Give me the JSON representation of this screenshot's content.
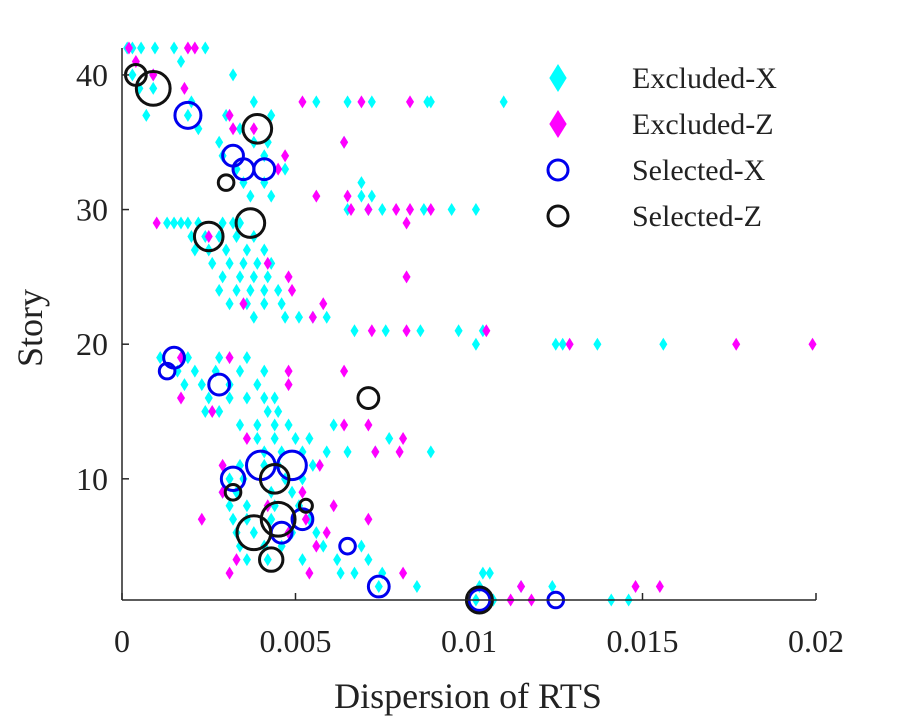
{
  "chart_data": {
    "type": "scatter",
    "xlabel": "Dispersion of RTS",
    "ylabel": "Story",
    "xlim": [
      0,
      0.02
    ],
    "ylim": [
      1,
      42
    ],
    "xticks": [
      0,
      0.005,
      0.01,
      0.015,
      0.02
    ],
    "xtick_labels": [
      "0",
      "0.005",
      "0.01",
      "0.015",
      "0.02"
    ],
    "yticks": [
      10,
      20,
      30,
      40
    ],
    "ytick_labels": [
      "10",
      "20",
      "30",
      "40"
    ],
    "grid": false,
    "legend_position": "top-right",
    "series": [
      {
        "name": "Excluded-X",
        "marker": "diamond",
        "filled": true,
        "color": "#00FFFF",
        "points": [
          [
            0.00015,
            42
          ],
          [
            0.0003,
            42
          ],
          [
            0.00055,
            42
          ],
          [
            0.00095,
            42
          ],
          [
            0.0015,
            42
          ],
          [
            0.0024,
            42
          ],
          [
            0.0003,
            40
          ],
          [
            0.0009,
            40
          ],
          [
            0.0017,
            41
          ],
          [
            0.0032,
            40
          ],
          [
            0.0005,
            39
          ],
          [
            0.0009,
            39
          ],
          [
            0.002,
            38
          ],
          [
            0.0038,
            38
          ],
          [
            0.0056,
            38
          ],
          [
            0.0065,
            38
          ],
          [
            0.0072,
            38
          ],
          [
            0.0088,
            38
          ],
          [
            0.0089,
            38
          ],
          [
            0.011,
            38
          ],
          [
            0.0007,
            37
          ],
          [
            0.0019,
            37
          ],
          [
            0.003,
            37
          ],
          [
            0.0043,
            37
          ],
          [
            0.0022,
            36
          ],
          [
            0.0034,
            36
          ],
          [
            0.0038,
            35
          ],
          [
            0.0042,
            35
          ],
          [
            0.0028,
            35
          ],
          [
            0.0064,
            35
          ],
          [
            0.0029,
            34
          ],
          [
            0.0041,
            34
          ],
          [
            0.0033,
            33
          ],
          [
            0.0047,
            33
          ],
          [
            0.0035,
            32
          ],
          [
            0.0041,
            32
          ],
          [
            0.0069,
            32
          ],
          [
            0.0037,
            31
          ],
          [
            0.0043,
            31
          ],
          [
            0.0069,
            31
          ],
          [
            0.0072,
            31
          ],
          [
            0.0075,
            30
          ],
          [
            0.0087,
            30
          ],
          [
            0.0095,
            30
          ],
          [
            0.0102,
            30
          ],
          [
            0.0065,
            30
          ],
          [
            0.0071,
            30
          ],
          [
            0.0013,
            29
          ],
          [
            0.0015,
            29
          ],
          [
            0.0017,
            29
          ],
          [
            0.0019,
            29
          ],
          [
            0.0022,
            29
          ],
          [
            0.0029,
            29
          ],
          [
            0.0032,
            29
          ],
          [
            0.0034,
            29
          ],
          [
            0.002,
            28
          ],
          [
            0.0024,
            28
          ],
          [
            0.0028,
            28
          ],
          [
            0.0033,
            28
          ],
          [
            0.0038,
            28
          ],
          [
            0.0021,
            27
          ],
          [
            0.0025,
            27
          ],
          [
            0.003,
            27
          ],
          [
            0.0036,
            27
          ],
          [
            0.0041,
            27
          ],
          [
            0.0026,
            26
          ],
          [
            0.0031,
            26
          ],
          [
            0.0035,
            26
          ],
          [
            0.0039,
            26
          ],
          [
            0.0043,
            26
          ],
          [
            0.0029,
            25
          ],
          [
            0.0034,
            25
          ],
          [
            0.0038,
            25
          ],
          [
            0.0042,
            25
          ],
          [
            0.0028,
            24
          ],
          [
            0.0033,
            24
          ],
          [
            0.0037,
            24
          ],
          [
            0.0041,
            24
          ],
          [
            0.0045,
            24
          ],
          [
            0.0031,
            23
          ],
          [
            0.0036,
            23
          ],
          [
            0.0041,
            23
          ],
          [
            0.0046,
            23
          ],
          [
            0.0038,
            22
          ],
          [
            0.0047,
            22
          ],
          [
            0.0051,
            22
          ],
          [
            0.0055,
            22
          ],
          [
            0.0059,
            22
          ],
          [
            0.0067,
            21
          ],
          [
            0.0076,
            21
          ],
          [
            0.0086,
            21
          ],
          [
            0.0097,
            21
          ],
          [
            0.0104,
            21
          ],
          [
            0.0102,
            20
          ],
          [
            0.0125,
            20
          ],
          [
            0.0127,
            20
          ],
          [
            0.0137,
            20
          ],
          [
            0.0156,
            20
          ],
          [
            0.0011,
            19
          ],
          [
            0.0019,
            19
          ],
          [
            0.0028,
            19
          ],
          [
            0.0036,
            19
          ],
          [
            0.0016,
            18
          ],
          [
            0.0021,
            18
          ],
          [
            0.0027,
            18
          ],
          [
            0.0034,
            18
          ],
          [
            0.0041,
            18
          ],
          [
            0.0018,
            17
          ],
          [
            0.0023,
            17
          ],
          [
            0.0031,
            17
          ],
          [
            0.0039,
            17
          ],
          [
            0.0025,
            16
          ],
          [
            0.0031,
            16
          ],
          [
            0.0036,
            16
          ],
          [
            0.0041,
            16
          ],
          [
            0.0044,
            16
          ],
          [
            0.0024,
            15
          ],
          [
            0.0028,
            15
          ],
          [
            0.0042,
            15
          ],
          [
            0.0045,
            15
          ],
          [
            0.0034,
            14
          ],
          [
            0.0039,
            14
          ],
          [
            0.0044,
            14
          ],
          [
            0.0048,
            14
          ],
          [
            0.0061,
            14
          ],
          [
            0.0039,
            13
          ],
          [
            0.0044,
            13
          ],
          [
            0.005,
            13
          ],
          [
            0.0054,
            13
          ],
          [
            0.0077,
            13
          ],
          [
            0.0041,
            12
          ],
          [
            0.0046,
            12
          ],
          [
            0.0052,
            12
          ],
          [
            0.0059,
            12
          ],
          [
            0.0065,
            12
          ],
          [
            0.0073,
            12
          ],
          [
            0.0089,
            12
          ],
          [
            0.0034,
            11
          ],
          [
            0.0041,
            11
          ],
          [
            0.0045,
            11
          ],
          [
            0.0055,
            11
          ],
          [
            0.0031,
            10
          ],
          [
            0.0035,
            10
          ],
          [
            0.0047,
            10
          ],
          [
            0.0052,
            10
          ],
          [
            0.0029,
            9
          ],
          [
            0.0033,
            9
          ],
          [
            0.0043,
            9
          ],
          [
            0.0049,
            9
          ],
          [
            0.0031,
            8
          ],
          [
            0.0036,
            8
          ],
          [
            0.0044,
            8
          ],
          [
            0.0051,
            8
          ],
          [
            0.0032,
            7
          ],
          [
            0.0036,
            7
          ],
          [
            0.0043,
            7
          ],
          [
            0.0054,
            7
          ],
          [
            0.0033,
            6
          ],
          [
            0.0038,
            6
          ],
          [
            0.0049,
            6
          ],
          [
            0.0056,
            6
          ],
          [
            0.0034,
            5
          ],
          [
            0.0041,
            5
          ],
          [
            0.0046,
            5
          ],
          [
            0.0058,
            5
          ],
          [
            0.0069,
            5
          ],
          [
            0.0036,
            4
          ],
          [
            0.0042,
            4
          ],
          [
            0.0052,
            4
          ],
          [
            0.0062,
            4
          ],
          [
            0.0071,
            4
          ],
          [
            0.0063,
            3
          ],
          [
            0.0067,
            3
          ],
          [
            0.0075,
            3
          ],
          [
            0.0104,
            3
          ],
          [
            0.0106,
            3
          ],
          [
            0.0074,
            2
          ],
          [
            0.0085,
            2
          ],
          [
            0.0103,
            2
          ],
          [
            0.0115,
            2
          ],
          [
            0.0124,
            2
          ],
          [
            0.0102,
            1
          ],
          [
            0.0107,
            1
          ],
          [
            0.0141,
            1
          ],
          [
            0.0146,
            1
          ]
        ]
      },
      {
        "name": "Excluded-Z",
        "marker": "diamond",
        "filled": true,
        "color": "#FF00FF",
        "points": [
          [
            0.0002,
            42
          ],
          [
            0.0019,
            42
          ],
          [
            0.0021,
            42
          ],
          [
            0.0004,
            41
          ],
          [
            0.0009,
            40
          ],
          [
            0.0018,
            39
          ],
          [
            0.0052,
            38
          ],
          [
            0.0069,
            38
          ],
          [
            0.0083,
            38
          ],
          [
            0.0031,
            37
          ],
          [
            0.0038,
            36
          ],
          [
            0.0032,
            36
          ],
          [
            0.0064,
            35
          ],
          [
            0.0047,
            34
          ],
          [
            0.0045,
            33
          ],
          [
            0.0056,
            31
          ],
          [
            0.0065,
            31
          ],
          [
            0.0066,
            30
          ],
          [
            0.0071,
            30
          ],
          [
            0.0079,
            30
          ],
          [
            0.0083,
            30
          ],
          [
            0.0089,
            30
          ],
          [
            0.001,
            29
          ],
          [
            0.0082,
            29
          ],
          [
            0.0025,
            28
          ],
          [
            0.0042,
            26
          ],
          [
            0.0048,
            25
          ],
          [
            0.0082,
            25
          ],
          [
            0.0049,
            24
          ],
          [
            0.0035,
            23
          ],
          [
            0.0058,
            23
          ],
          [
            0.0055,
            22
          ],
          [
            0.0072,
            21
          ],
          [
            0.0082,
            21
          ],
          [
            0.0105,
            21
          ],
          [
            0.0129,
            20
          ],
          [
            0.0177,
            20
          ],
          [
            0.0199,
            20
          ],
          [
            0.0017,
            19
          ],
          [
            0.0031,
            19
          ],
          [
            0.0048,
            18
          ],
          [
            0.0064,
            18
          ],
          [
            0.0017,
            16
          ],
          [
            0.0048,
            17
          ],
          [
            0.0026,
            15
          ],
          [
            0.0064,
            14
          ],
          [
            0.0071,
            14
          ],
          [
            0.0036,
            13
          ],
          [
            0.0081,
            13
          ],
          [
            0.0073,
            12
          ],
          [
            0.008,
            12
          ],
          [
            0.0029,
            11
          ],
          [
            0.0057,
            11
          ],
          [
            0.0029,
            9
          ],
          [
            0.0052,
            9
          ],
          [
            0.0042,
            8
          ],
          [
            0.0061,
            8
          ],
          [
            0.0023,
            7
          ],
          [
            0.0053,
            7
          ],
          [
            0.0071,
            7
          ],
          [
            0.0048,
            6
          ],
          [
            0.0059,
            6
          ],
          [
            0.0056,
            5
          ],
          [
            0.0033,
            4
          ],
          [
            0.0031,
            3
          ],
          [
            0.0054,
            3
          ],
          [
            0.0081,
            3
          ],
          [
            0.0115,
            2
          ],
          [
            0.0148,
            2
          ],
          [
            0.0155,
            2
          ],
          [
            0.0112,
            1
          ],
          [
            0.0118,
            1
          ]
        ]
      },
      {
        "name": "Selected-X",
        "marker": "circle",
        "filled": false,
        "color": "#0000EE",
        "points": [
          [
            0.0019,
            37,
            1.0
          ],
          [
            0.0032,
            34,
            0.8
          ],
          [
            0.0035,
            33,
            0.8
          ],
          [
            0.0041,
            33,
            0.8
          ],
          [
            0.0015,
            19,
            0.8
          ],
          [
            0.0013,
            18,
            0.6
          ],
          [
            0.0028,
            17,
            0.8
          ],
          [
            0.0032,
            10,
            0.9
          ],
          [
            0.004,
            11,
            1.1
          ],
          [
            0.0049,
            11,
            1.1
          ],
          [
            0.0052,
            7,
            0.8
          ],
          [
            0.0046,
            6,
            0.8
          ],
          [
            0.0065,
            5,
            0.6
          ],
          [
            0.0074,
            2,
            0.8
          ],
          [
            0.0103,
            1,
            0.8
          ],
          [
            0.0125,
            1,
            0.6
          ]
        ]
      },
      {
        "name": "Selected-Z",
        "marker": "circle",
        "filled": false,
        "color": "#111111",
        "points": [
          [
            0.0004,
            40,
            0.8
          ],
          [
            0.0009,
            39,
            1.3
          ],
          [
            0.0039,
            36,
            1.1
          ],
          [
            0.003,
            32,
            0.6
          ],
          [
            0.0037,
            29,
            1.1
          ],
          [
            0.0025,
            28,
            1.1
          ],
          [
            0.0071,
            16,
            0.8
          ],
          [
            0.0044,
            10,
            1.1
          ],
          [
            0.0032,
            9,
            0.6
          ],
          [
            0.0053,
            8,
            0.5
          ],
          [
            0.0045,
            7,
            1.3
          ],
          [
            0.0038,
            6,
            1.3
          ],
          [
            0.0043,
            4,
            0.9
          ],
          [
            0.0103,
            1,
            1.0
          ]
        ]
      }
    ]
  }
}
